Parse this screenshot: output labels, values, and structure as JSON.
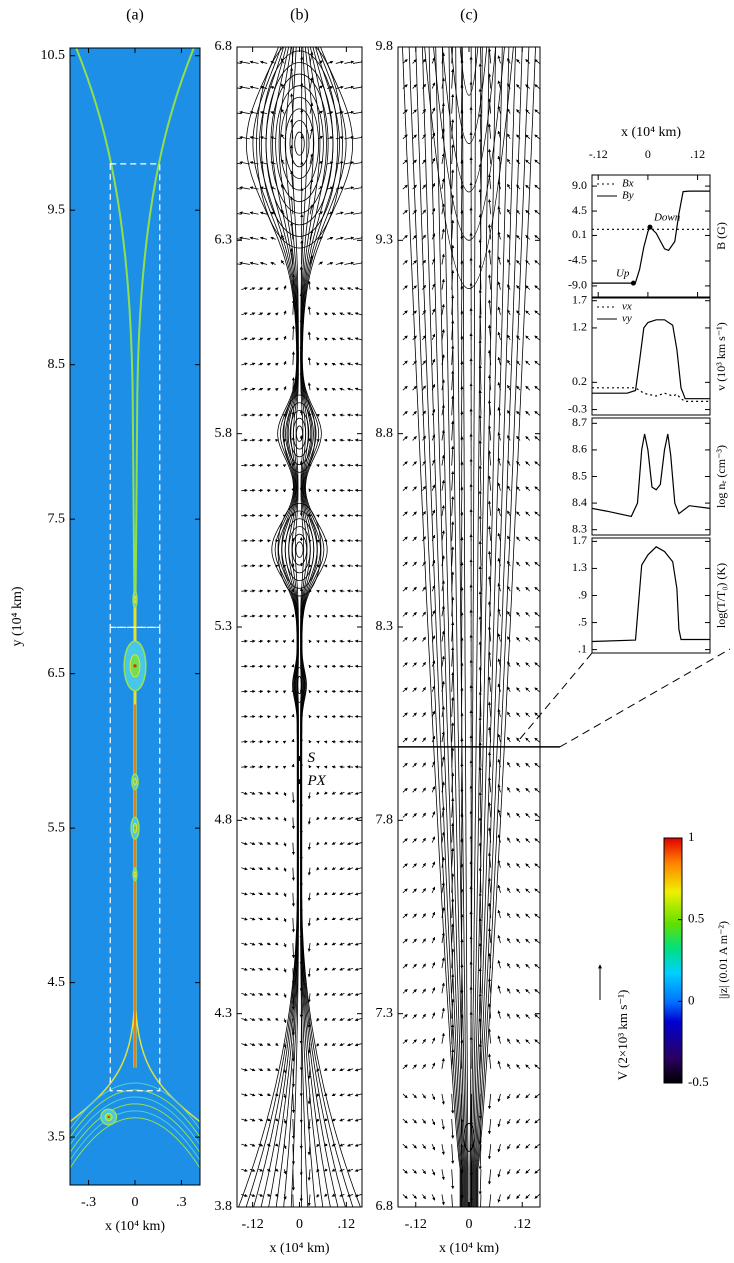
{
  "chart_data": [
    {
      "type": "heatmap",
      "title": "(a)",
      "x_label": "x (10⁴ km)",
      "y_label": "y (10⁴ km)",
      "xlim": [
        -0.42,
        0.42
      ],
      "xticks": [
        {
          "value": -0.3,
          "label": "-.3"
        },
        0,
        {
          "value": 0.3,
          "label": ".3"
        }
      ],
      "ylim": [
        3.19,
        10.55
      ],
      "yticks": [
        10.5,
        9.5,
        8.5,
        7.5,
        6.5,
        5.5,
        4.5,
        3.5
      ],
      "colorbar": {
        "label": "|jz| (0.01 A m⁻²)",
        "lim": [
          -0.5,
          1
        ],
        "ticks": [
          1,
          0.5,
          0,
          -0.5
        ]
      }
    },
    {
      "type": "streamline",
      "title": "(b)",
      "x_label": "x (10⁴ km)",
      "xlim": [
        -0.16,
        0.16
      ],
      "xticks": [
        {
          "value": -0.12,
          "label": "-.12"
        },
        0,
        {
          "value": 0.12,
          "label": ".12"
        }
      ],
      "ylim": [
        3.8,
        6.8
      ],
      "yticks": [
        6.8,
        6.3,
        5.8,
        5.3,
        4.8,
        4.3,
        3.8
      ],
      "points": [
        {
          "label": "S",
          "x": 0,
          "y": 4.96
        },
        {
          "label": "PX",
          "x": 0,
          "y": 4.9
        }
      ],
      "vector_key": "V (2×10³ km s⁻¹)"
    },
    {
      "type": "streamline",
      "title": "(c)",
      "x_label": "x (10⁴ km)",
      "xlim": [
        -0.16,
        0.16
      ],
      "xticks": [
        {
          "value": -0.12,
          "label": "-.12"
        },
        0,
        {
          "value": 0.12,
          "label": ".12"
        }
      ],
      "ylim": [
        6.8,
        9.8
      ],
      "yticks": [
        9.8,
        9.3,
        8.8,
        8.3,
        7.8,
        7.3,
        6.8
      ],
      "cut_y": 7.99
    },
    {
      "type": "line",
      "x_label": "x (10⁴ km)",
      "y_label": "B (G)",
      "legend": "top-left",
      "xlim": [
        -0.135,
        0.15
      ],
      "xticks": [
        {
          "value": -0.12,
          "label": "-.12"
        },
        0,
        {
          "value": 0.12,
          "label": ".12"
        }
      ],
      "ylim": [
        -11,
        11
      ],
      "yticks": [
        {
          "value": 9,
          "label": "9.0"
        },
        4.5,
        0.1,
        -4.5,
        {
          "value": -9,
          "label": "-9.0"
        }
      ],
      "x": [
        -0.135,
        -0.1,
        -0.04,
        -0.03,
        -0.02,
        -0.01,
        0,
        0.005,
        0.02,
        0.04,
        0.05,
        0.065,
        0.075,
        0.085,
        0.1,
        0.15
      ],
      "series": [
        {
          "name": "Bx",
          "style": "dotted",
          "values": [
            1.2,
            1.2,
            1.2,
            1.2,
            1.2,
            1.2,
            1.2,
            1.2,
            1.2,
            1.2,
            1.2,
            1.2,
            1.2,
            1.2,
            1.2,
            1.2
          ]
        },
        {
          "name": "By",
          "style": "solid",
          "values": [
            -8.5,
            -8.5,
            -8.5,
            -8.4,
            -6,
            -2,
            0.8,
            1.6,
            0.5,
            -2.3,
            -2.6,
            -1,
            4,
            8,
            8.1,
            8.1
          ]
        }
      ],
      "points": [
        {
          "label": "Up",
          "x": -0.035,
          "y": -8.5
        },
        {
          "label": "Down",
          "x": 0.005,
          "y": 1.6
        }
      ]
    },
    {
      "type": "line",
      "y_label": "v (10³ km s⁻¹)",
      "legend": "top-left",
      "xlim": [
        -0.135,
        0.15
      ],
      "ylim": [
        -0.4,
        1.75
      ],
      "yticks": [
        1.7,
        1.2,
        0.2,
        -0.3
      ],
      "x": [
        -0.135,
        -0.05,
        -0.03,
        -0.02,
        -0.01,
        0,
        0.02,
        0.04,
        0.06,
        0.07,
        0.08,
        0.09,
        0.15
      ],
      "series": [
        {
          "name": "vx",
          "style": "dotted",
          "values": [
            0.1,
            0.1,
            0.1,
            0.05,
            0,
            -0.02,
            -0.05,
            0,
            -0.05,
            -0.02,
            -0.1,
            -0.15,
            -0.15
          ]
        },
        {
          "name": "vy",
          "style": "solid",
          "values": [
            0,
            0,
            0.05,
            0.6,
            1.2,
            1.3,
            1.35,
            1.35,
            1.25,
            0.8,
            0.1,
            -0.1,
            -0.1
          ]
        }
      ]
    },
    {
      "type": "line",
      "y_label": "log nₑ (cm⁻³)",
      "xlim": [
        -0.135,
        0.15
      ],
      "ylim": [
        8.28,
        8.72
      ],
      "yticks": [
        8.7,
        8.6,
        8.5,
        8.4,
        8.3
      ],
      "x": [
        -0.135,
        -0.1,
        -0.04,
        -0.025,
        -0.015,
        -0.008,
        0,
        0.01,
        0.02,
        0.03,
        0.04,
        0.048,
        0.055,
        0.065,
        0.075,
        0.1,
        0.15
      ],
      "values": [
        8.38,
        8.37,
        8.35,
        8.4,
        8.6,
        8.66,
        8.6,
        8.46,
        8.45,
        8.47,
        8.6,
        8.66,
        8.58,
        8.4,
        8.36,
        8.39,
        8.38
      ]
    },
    {
      "type": "line",
      "y_label": "log(T/T₀) (K)",
      "xlim": [
        -0.135,
        0.15
      ],
      "ylim": [
        0.05,
        1.75
      ],
      "yticks": [
        1.7,
        1.3,
        {
          "value": 0.9,
          "label": ".9"
        },
        {
          "value": 0.5,
          "label": ".5"
        },
        {
          "value": 0.1,
          "label": ".1"
        }
      ],
      "x": [
        -0.135,
        -0.03,
        -0.025,
        -0.015,
        0,
        0.02,
        0.04,
        0.06,
        0.07,
        0.075,
        0.08,
        0.15
      ],
      "values": [
        0.22,
        0.24,
        0.6,
        1.35,
        1.5,
        1.62,
        1.55,
        1.4,
        1.0,
        0.4,
        0.25,
        0.25
      ]
    }
  ]
}
